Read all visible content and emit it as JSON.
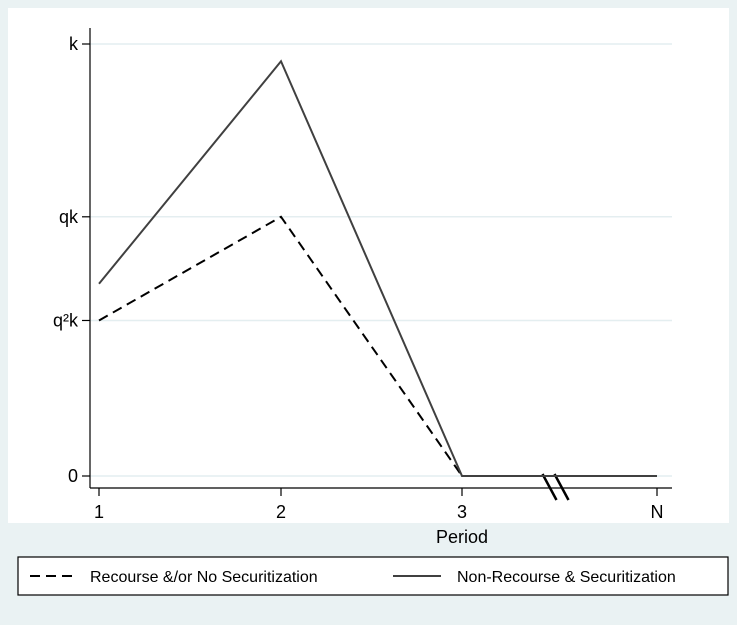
{
  "chart_data": {
    "type": "line",
    "title": "",
    "xlabel": "Period",
    "ylabel": "",
    "x": [
      "1",
      "2",
      "3",
      "N"
    ],
    "y_ticks": [
      {
        "label": "0",
        "value": 0
      },
      {
        "label": "q²k",
        "value": 0.36
      },
      {
        "label": "qk",
        "value": 0.6
      },
      {
        "label": "k",
        "value": 1.0
      }
    ],
    "ylim": [
      0,
      1.0
    ],
    "grid": true,
    "axis_break_between": [
      "3",
      "N"
    ],
    "legend_position": "bottom",
    "series": [
      {
        "name": "Recourse &/or No Securitization",
        "style": "dashed",
        "color": "#000000",
        "values": [
          0.36,
          0.6,
          0,
          0
        ]
      },
      {
        "name": "Non-Recourse & Securitization",
        "style": "solid",
        "color": "#404040",
        "values": [
          0.445,
          0.96,
          0,
          0
        ]
      }
    ]
  }
}
